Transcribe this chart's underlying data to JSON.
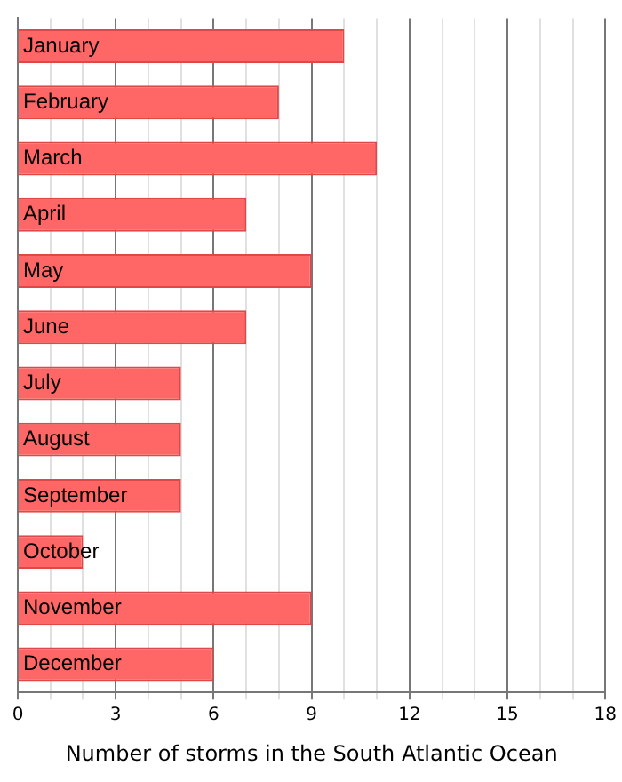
{
  "chart_data": {
    "type": "bar",
    "orientation": "horizontal",
    "xlabel": "Number of storms in the South Atlantic Ocean",
    "categories": [
      "January",
      "February",
      "March",
      "April",
      "May",
      "June",
      "July",
      "August",
      "September",
      "October",
      "November",
      "December"
    ],
    "values": [
      10,
      8,
      11,
      7,
      9,
      7,
      5,
      5,
      5,
      2,
      9,
      6
    ],
    "color": "#ff6666",
    "xlim": [
      0,
      18
    ],
    "xticks": [
      0,
      {
        "value": 1,
        "label": null
      },
      {
        "value": 2,
        "label": null
      },
      3,
      {
        "value": 4,
        "label": null
      },
      {
        "value": 5,
        "label": null
      },
      6,
      {
        "value": 7,
        "label": null
      },
      {
        "value": 8,
        "label": null
      },
      9,
      {
        "value": 10,
        "label": null
      },
      {
        "value": 11,
        "label": null
      },
      12,
      {
        "value": 13,
        "label": null
      },
      {
        "value": 14,
        "label": null
      },
      15,
      {
        "value": 16,
        "label": null
      },
      {
        "value": 17,
        "label": null
      },
      18
    ],
    "grid": "x"
  }
}
